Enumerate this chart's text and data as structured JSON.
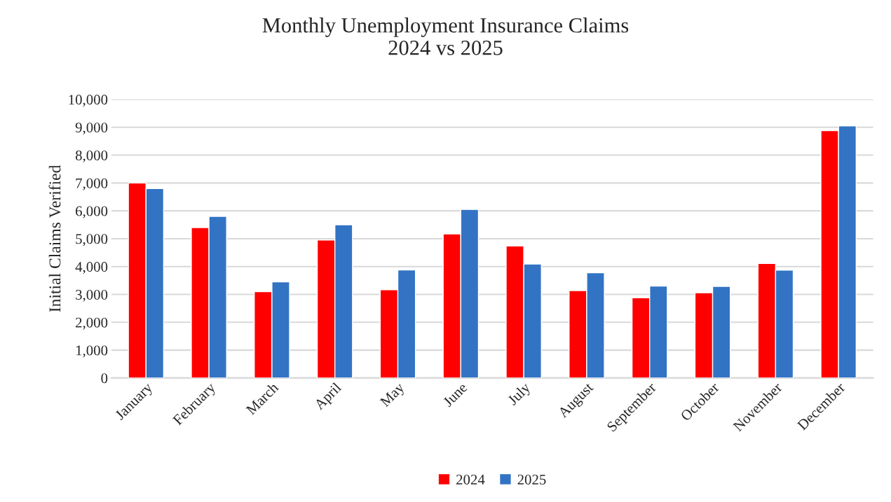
{
  "chart_data": {
    "type": "bar",
    "title": "Monthly Unemployment Insurance Claims\n2024 vs 2025",
    "ylabel": "Initial Claims Verified",
    "categories": [
      "January",
      "February",
      "March",
      "April",
      "May",
      "June",
      "July",
      "August",
      "September",
      "October",
      "November",
      "December"
    ],
    "series": [
      {
        "name": "2024",
        "color": "#ff0000",
        "values": [
          7000,
          5400,
          3100,
          4950,
          3170,
          5170,
          4740,
          3140,
          2880,
          3060,
          4110,
          8880
        ]
      },
      {
        "name": "2025",
        "color": "#3273c4",
        "values": [
          6800,
          5800,
          3450,
          5500,
          3880,
          6050,
          4090,
          3780,
          3300,
          3290,
          3870,
          9050
        ]
      }
    ],
    "ylim": [
      0,
      10000
    ],
    "yticks": [
      0,
      {
        "value": 1000,
        "label": "1,000"
      },
      {
        "value": 2000,
        "label": "2,000"
      },
      {
        "value": 3000,
        "label": "3,000"
      },
      {
        "value": 4000,
        "label": "4,000"
      },
      {
        "value": 5000,
        "label": "5,000"
      },
      {
        "value": 6000,
        "label": "6,000"
      },
      {
        "value": 7000,
        "label": "7,000"
      },
      {
        "value": 8000,
        "label": "8,000"
      },
      {
        "value": 9000,
        "label": "9,000"
      },
      {
        "value": 10000,
        "label": "10,000"
      }
    ],
    "grid": "y",
    "legend": "bottom"
  }
}
